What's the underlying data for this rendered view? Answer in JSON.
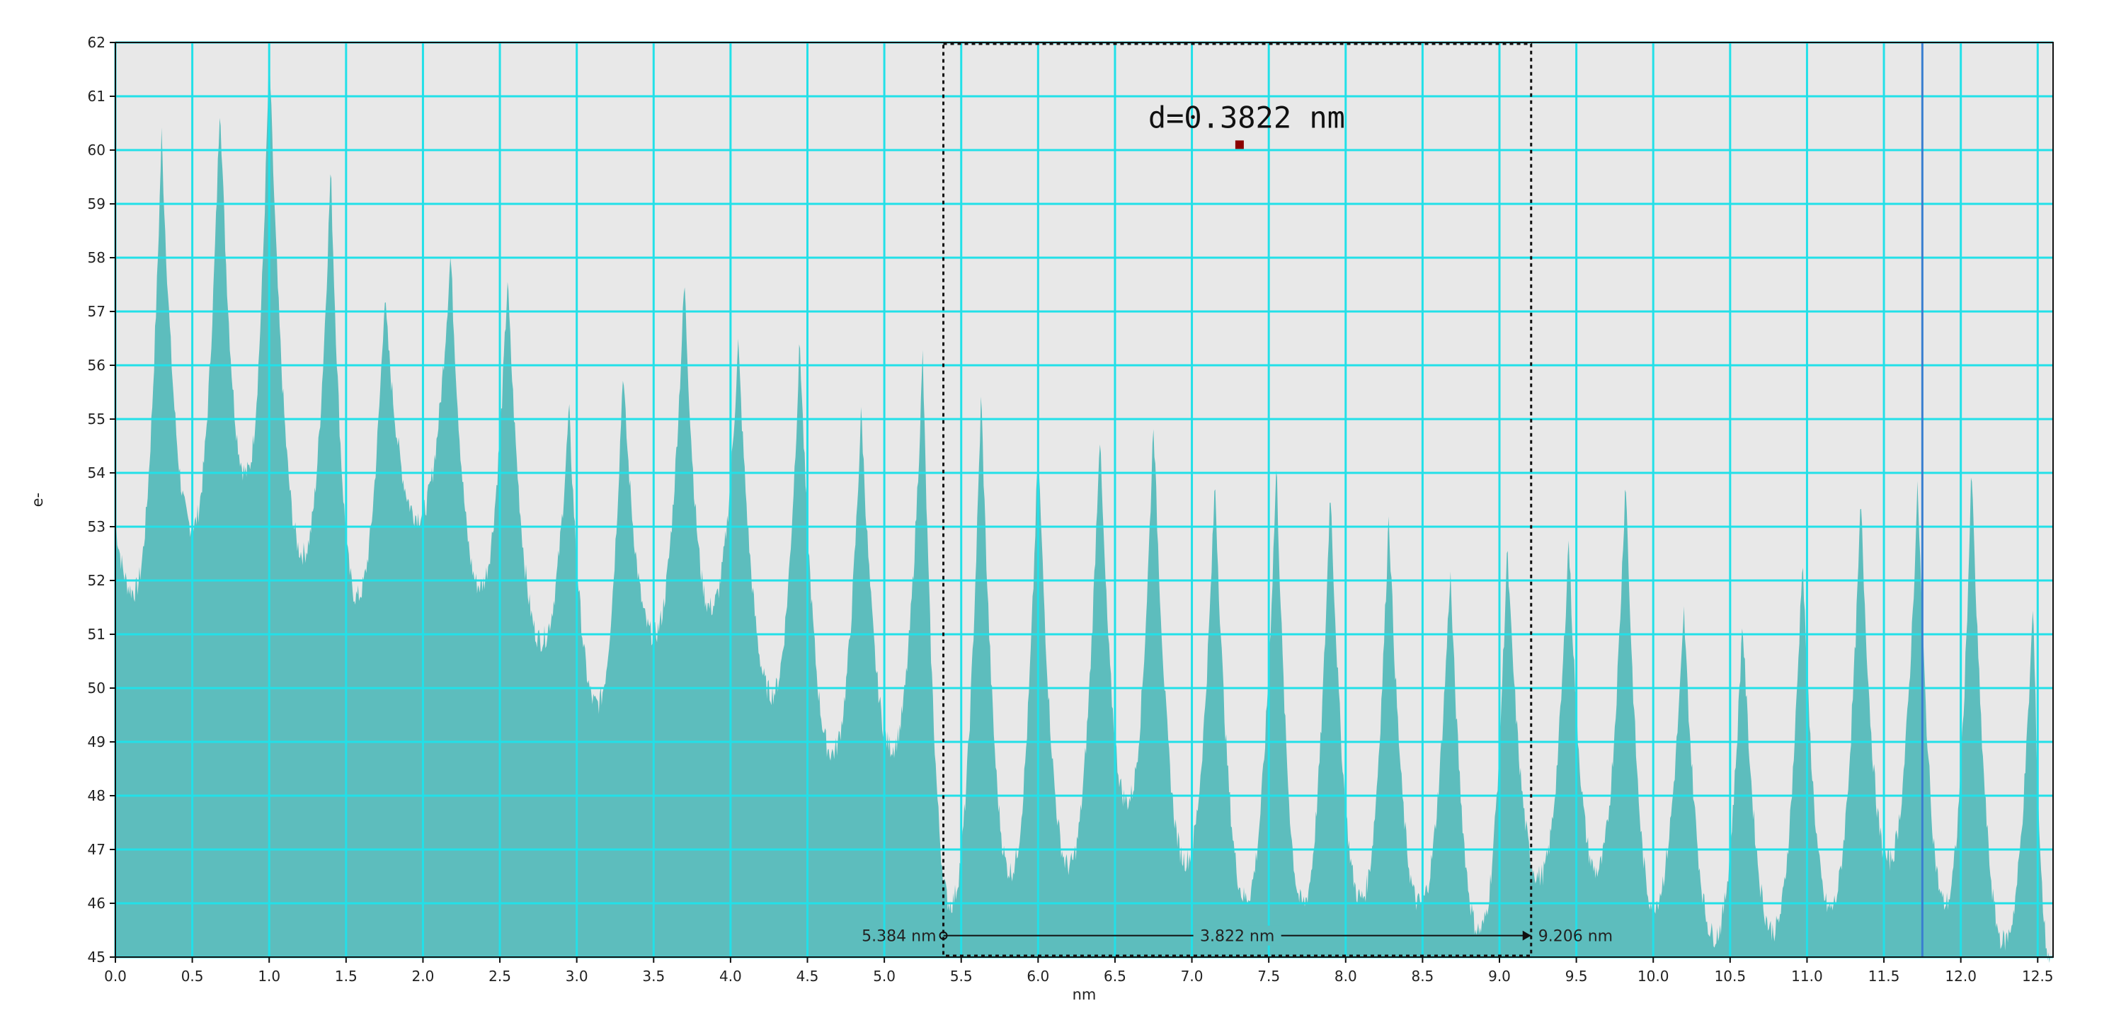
{
  "chart_data": {
    "type": "area",
    "title": "",
    "xlabel": "nm",
    "ylabel": "e-",
    "xlim": [
      0.0,
      12.6
    ],
    "ylim": [
      45,
      62
    ],
    "x_ticks": [
      "0.0",
      "0.5",
      "1.0",
      "1.5",
      "2.0",
      "2.5",
      "3.0",
      "3.5",
      "4.0",
      "4.5",
      "5.0",
      "5.5",
      "6.0",
      "6.5",
      "7.0",
      "7.5",
      "8.0",
      "8.5",
      "9.0",
      "9.5",
      "10.0",
      "10.5",
      "11.0",
      "11.5",
      "12.0",
      "12.5"
    ],
    "y_ticks": [
      "45",
      "46",
      "47",
      "48",
      "49",
      "50",
      "51",
      "52",
      "53",
      "54",
      "55",
      "56",
      "57",
      "58",
      "59",
      "60",
      "61",
      "62"
    ],
    "grid": true,
    "colors": {
      "fill": "#5dbdbd",
      "grid": "#22e0e8",
      "background": "#e8e8e8",
      "cursor": "#3a7fd0",
      "marker": "#8b0000"
    },
    "series": [
      {
        "peaks": [
          {
            "x": 0.0,
            "y": 53.1
          },
          {
            "x": 0.3,
            "y": 60.3
          },
          {
            "x": 0.68,
            "y": 61.0
          },
          {
            "x": 1.0,
            "y": 61.9
          },
          {
            "x": 1.4,
            "y": 59.7
          },
          {
            "x": 1.75,
            "y": 57.3
          },
          {
            "x": 2.18,
            "y": 58.1
          },
          {
            "x": 2.55,
            "y": 57.6
          },
          {
            "x": 2.95,
            "y": 55.2
          },
          {
            "x": 3.3,
            "y": 55.9
          },
          {
            "x": 3.7,
            "y": 57.6
          },
          {
            "x": 4.05,
            "y": 56.4
          },
          {
            "x": 4.45,
            "y": 56.5
          },
          {
            "x": 4.85,
            "y": 55.2
          },
          {
            "x": 5.25,
            "y": 56.2
          },
          {
            "x": 5.63,
            "y": 55.5
          },
          {
            "x": 6.0,
            "y": 54.6
          },
          {
            "x": 6.4,
            "y": 54.8
          },
          {
            "x": 6.75,
            "y": 55.0
          },
          {
            "x": 7.15,
            "y": 53.9
          },
          {
            "x": 7.55,
            "y": 54.2
          },
          {
            "x": 7.9,
            "y": 53.8
          },
          {
            "x": 8.28,
            "y": 53.3
          },
          {
            "x": 8.68,
            "y": 52.2
          },
          {
            "x": 9.05,
            "y": 52.6
          },
          {
            "x": 9.45,
            "y": 52.8
          },
          {
            "x": 9.82,
            "y": 54.0
          },
          {
            "x": 10.2,
            "y": 51.4
          },
          {
            "x": 10.58,
            "y": 51.3
          },
          {
            "x": 10.97,
            "y": 52.5
          },
          {
            "x": 11.35,
            "y": 53.5
          },
          {
            "x": 11.72,
            "y": 53.8
          },
          {
            "x": 12.07,
            "y": 54.1
          },
          {
            "x": 12.47,
            "y": 51.6
          }
        ],
        "valleys": [
          {
            "x": 0.12,
            "y": 51.8
          },
          {
            "x": 0.5,
            "y": 53.0
          },
          {
            "x": 0.85,
            "y": 54.0
          },
          {
            "x": 1.22,
            "y": 52.5
          },
          {
            "x": 1.57,
            "y": 51.7
          },
          {
            "x": 1.97,
            "y": 53.2
          },
          {
            "x": 2.37,
            "y": 51.9
          },
          {
            "x": 2.77,
            "y": 50.9
          },
          {
            "x": 3.13,
            "y": 49.7
          },
          {
            "x": 3.5,
            "y": 51.0
          },
          {
            "x": 3.87,
            "y": 51.5
          },
          {
            "x": 4.27,
            "y": 49.9
          },
          {
            "x": 4.66,
            "y": 48.8
          },
          {
            "x": 5.05,
            "y": 48.9
          },
          {
            "x": 5.43,
            "y": 46.0
          },
          {
            "x": 5.82,
            "y": 46.6
          },
          {
            "x": 6.2,
            "y": 46.7
          },
          {
            "x": 6.58,
            "y": 47.9
          },
          {
            "x": 6.96,
            "y": 46.8
          },
          {
            "x": 7.35,
            "y": 46.1
          },
          {
            "x": 7.72,
            "y": 46.0
          },
          {
            "x": 8.1,
            "y": 46.1
          },
          {
            "x": 8.48,
            "y": 46.0
          },
          {
            "x": 8.87,
            "y": 45.5
          },
          {
            "x": 9.26,
            "y": 46.5
          },
          {
            "x": 9.63,
            "y": 46.6
          },
          {
            "x": 10.0,
            "y": 46.0
          },
          {
            "x": 10.4,
            "y": 45.4
          },
          {
            "x": 10.78,
            "y": 45.5
          },
          {
            "x": 11.15,
            "y": 45.9
          },
          {
            "x": 11.53,
            "y": 46.8
          },
          {
            "x": 11.9,
            "y": 46.0
          },
          {
            "x": 12.28,
            "y": 45.3
          },
          {
            "x": 12.58,
            "y": 45.0
          }
        ]
      }
    ],
    "measurement": {
      "start_x": 5.384,
      "end_x": 9.206,
      "start_label": "5.384 nm",
      "end_label": "9.206 nm",
      "span_label": "3.822 nm",
      "y": 45.4
    },
    "annotation": {
      "text": "d=0.3822 nm",
      "marker_x": 7.31,
      "marker_y": 60.1
    },
    "cursor_x": 11.75
  }
}
